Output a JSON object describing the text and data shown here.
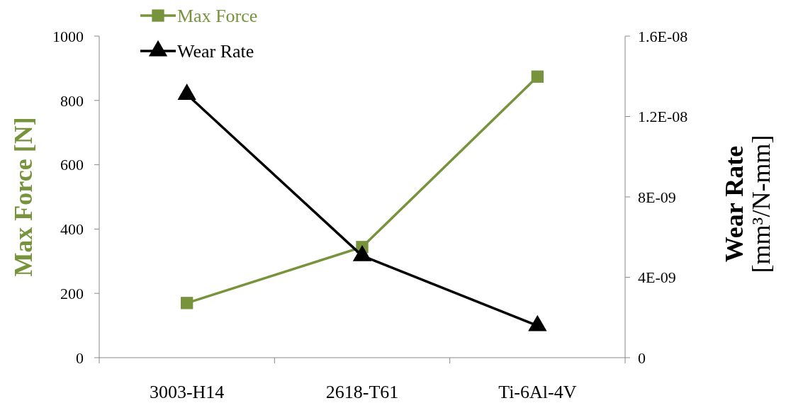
{
  "chart_data": {
    "type": "line",
    "categories": [
      "3003-H14",
      "2618-T61",
      "Ti-6Al-4V"
    ],
    "ylabel": "Max Force [N]",
    "y2label": "Wear Rate [mm³/N-mm]",
    "ylim": [
      0,
      1000
    ],
    "yticks": [
      0,
      200,
      400,
      600,
      800,
      1000
    ],
    "y2lim": [
      0,
      1.6e-08
    ],
    "y2ticks": [
      {
        "value": 0,
        "label": "0"
      },
      {
        "value": 4e-09,
        "label": "4E-09"
      },
      {
        "value": 8e-09,
        "label": "8E-09"
      },
      {
        "value": 1.2e-08,
        "label": "1.2E-08"
      },
      {
        "value": 1.6e-08,
        "label": "1.6E-08"
      }
    ],
    "series": [
      {
        "name": "Max Force",
        "color": "#77933c",
        "marker": "square",
        "values": [
          170,
          344,
          874
        ]
      },
      {
        "name": "Wear Rate",
        "color": "#000000",
        "marker": "triangle",
        "axis": "y2",
        "values": [
          1.31e-08,
          5.07e-09,
          1.59e-09
        ]
      }
    ],
    "grid": false,
    "legend": "top left"
  }
}
